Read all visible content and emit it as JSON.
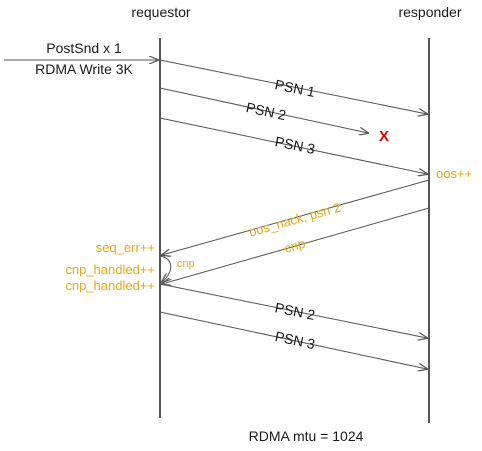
{
  "participants": {
    "left": "requestor",
    "right": "responder"
  },
  "initiator": {
    "line1": "PostSnd x 1",
    "line2": "RDMA Write 3K"
  },
  "messages": [
    {
      "label": "PSN 1",
      "from": "requestor",
      "to": "responder"
    },
    {
      "label": "PSN 2",
      "from": "requestor",
      "to": "lost"
    },
    {
      "label": "PSN 3",
      "from": "requestor",
      "to": "responder"
    },
    {
      "label": "oos_nack, psn 2",
      "from": "responder",
      "to": "requestor"
    },
    {
      "label": "cnp",
      "from": "responder",
      "to": "requestor"
    },
    {
      "label": "cnp",
      "from": "requestor",
      "to": "requestor"
    },
    {
      "label": "PSN 2",
      "from": "requestor",
      "to": "responder"
    },
    {
      "label": "PSN 3",
      "from": "requestor",
      "to": "responder"
    }
  ],
  "loss_marker": "X",
  "counters": {
    "responder_oos": "oos++",
    "seq_err": "seq_err++",
    "cnp_handled_1": "cnp_handled++",
    "cnp_handled_2": "cnp_handled++"
  },
  "footer": "RDMA mtu = 1024",
  "colors": {
    "line": "#555555",
    "text": "#1a1a1a",
    "counter": "#e6a817",
    "loss": "#e00000"
  }
}
